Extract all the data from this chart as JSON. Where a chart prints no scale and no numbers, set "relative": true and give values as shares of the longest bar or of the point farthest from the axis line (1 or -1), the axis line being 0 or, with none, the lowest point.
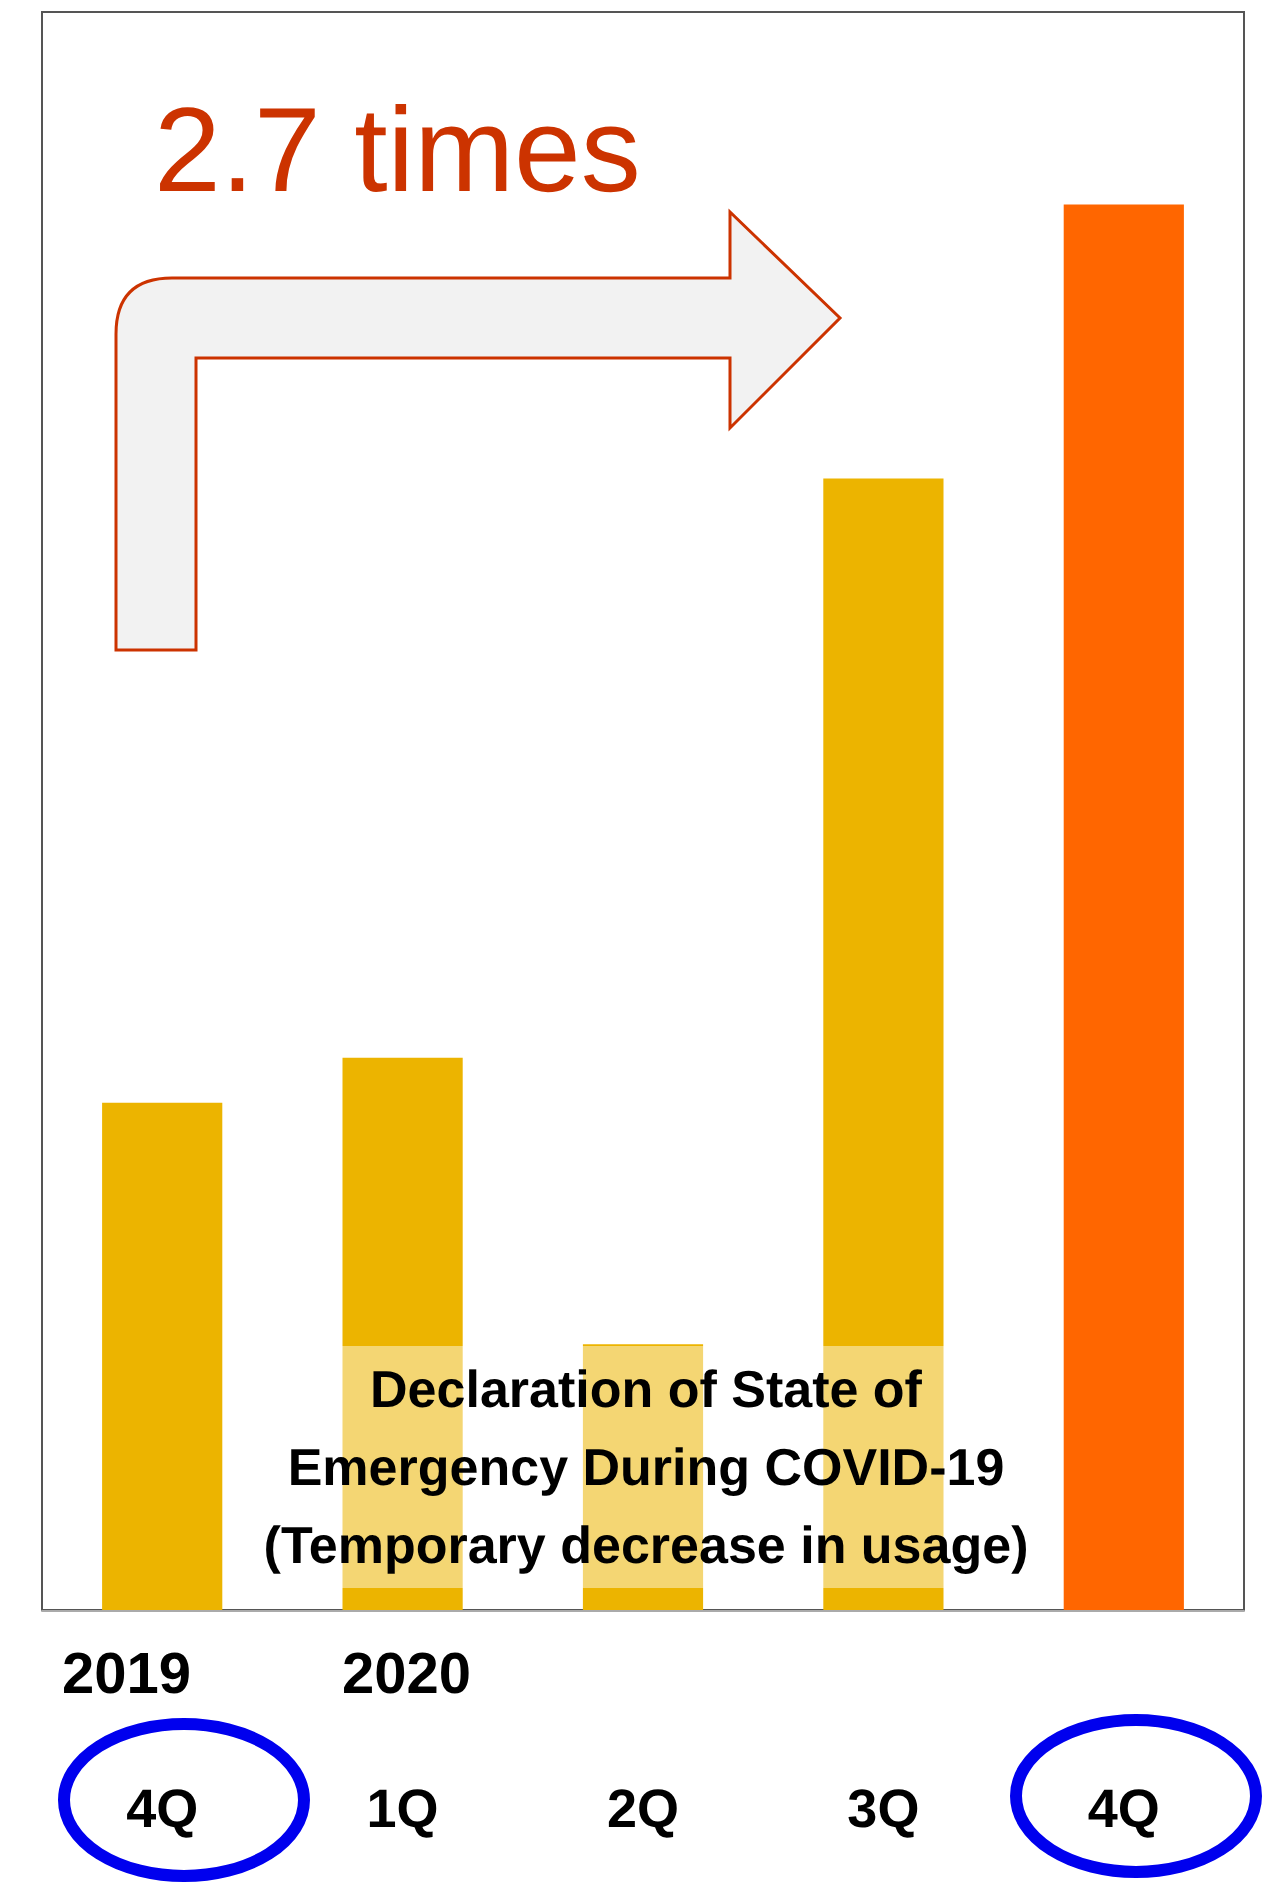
{
  "chart_data": {
    "type": "bar",
    "relative": true,
    "categories": [
      "4Q",
      "1Q",
      "2Q",
      "3Q",
      "4Q"
    ],
    "values": [
      0.361,
      0.393,
      0.189,
      0.805,
      1
    ],
    "colors": [
      "#ecb400",
      "#ecb400",
      "#ecb400",
      "#ecb400",
      "#ff6600"
    ],
    "annotations": [
      "2.7 times",
      "Declaration of State of\nEmergency During COVID-19\n(Temporary decrease in usage)",
      "2019",
      "2020"
    ],
    "data_labels": false
  }
}
